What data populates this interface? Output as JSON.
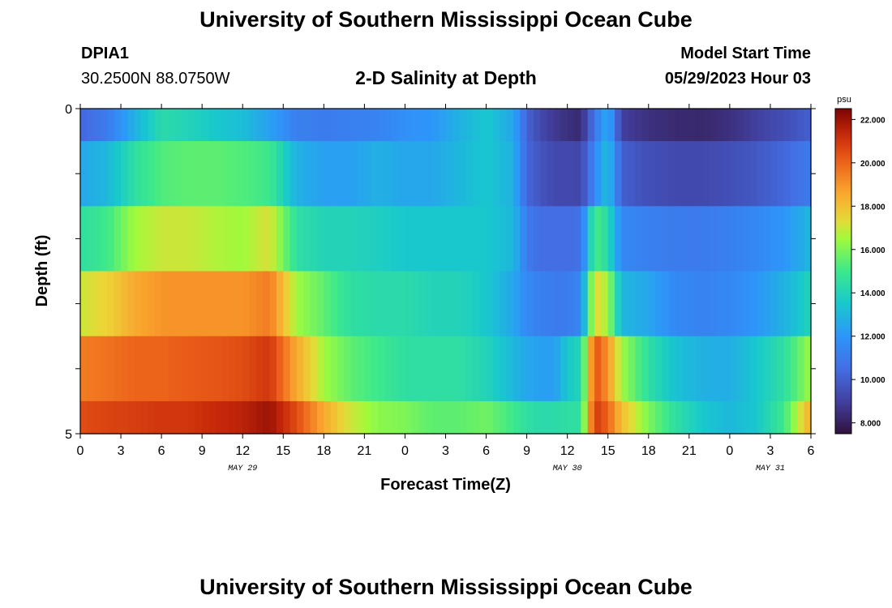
{
  "page": {
    "title_top": "University of Southern Mississippi Ocean Cube",
    "title_bottom": "University of Southern Mississippi Ocean Cube",
    "station_id": "DPIA1",
    "station_coords": "30.2500N  88.0750W",
    "chart_title": "2-D Salinity at Depth",
    "model_start_label": "Model Start Time",
    "model_start_value": "05/29/2023 Hour 03"
  },
  "chart_data": {
    "type": "heatmap",
    "title": "2-D Salinity at Depth",
    "xlabel": "Forecast Time(Z)",
    "ylabel": "Depth (ft)",
    "x_ticks": [
      "0",
      "3",
      "6",
      "9",
      "12",
      "15",
      "18",
      "21",
      "0",
      "3",
      "6",
      "9",
      "12",
      "15",
      "18",
      "21",
      "0",
      "3",
      "6"
    ],
    "x_day_labels": [
      "MAY 29",
      "MAY 30",
      "MAY 31"
    ],
    "x_range_hours": [
      0,
      54
    ],
    "y_ticks": [
      "0",
      "5"
    ],
    "y_range": [
      0,
      5
    ],
    "colorbar": {
      "unit": "psu",
      "range": [
        7.5,
        22.5
      ],
      "ticks": [
        "22.000",
        "20.000",
        "18.000",
        "16.000",
        "14.000",
        "12.000",
        "10.000",
        "8.000"
      ]
    },
    "depth_layers": [
      0.5,
      1.5,
      2.5,
      3.5,
      4.5
    ],
    "series": [
      {
        "name": "layer-1",
        "hours": [
          0,
          2,
          4,
          6,
          8,
          10,
          12,
          14,
          16,
          18,
          20,
          22,
          24,
          26,
          28,
          30,
          32,
          33,
          34,
          35,
          36,
          37,
          38,
          39,
          40,
          42,
          44,
          46,
          48,
          50,
          52,
          54
        ],
        "values": [
          10.3,
          11.0,
          12.8,
          14.3,
          14.0,
          13.5,
          13.2,
          12.3,
          11.2,
          11.0,
          11.2,
          11.3,
          11.8,
          12.0,
          12.8,
          13.5,
          12.5,
          10.2,
          9.3,
          8.8,
          8.5,
          8.3,
          10.8,
          12.8,
          9.0,
          8.5,
          8.3,
          8.2,
          8.5,
          9.0,
          9.5,
          10.0
        ]
      },
      {
        "name": "layer-2",
        "hours": [
          0,
          2,
          4,
          6,
          8,
          10,
          12,
          14,
          16,
          18,
          20,
          22,
          24,
          26,
          28,
          30,
          32,
          33,
          34,
          35,
          36,
          37,
          38,
          39,
          40,
          42,
          44,
          46,
          48,
          50,
          52,
          54
        ],
        "values": [
          12.5,
          13.0,
          14.5,
          15.3,
          15.5,
          15.5,
          15.3,
          15.0,
          12.8,
          12.3,
          12.3,
          12.8,
          12.5,
          12.5,
          13.0,
          13.5,
          12.8,
          10.3,
          9.7,
          9.3,
          9.3,
          9.2,
          11.5,
          13.3,
          10.0,
          9.5,
          9.3,
          9.3,
          9.5,
          9.8,
          10.3,
          11.0
        ]
      },
      {
        "name": "layer-3",
        "hours": [
          0,
          2,
          4,
          6,
          8,
          10,
          12,
          14,
          16,
          18,
          20,
          22,
          24,
          26,
          28,
          30,
          32,
          33,
          34,
          35,
          36,
          37,
          38,
          39,
          40,
          42,
          44,
          46,
          48,
          50,
          52,
          54
        ],
        "values": [
          14.5,
          15.0,
          16.5,
          17.0,
          17.0,
          16.7,
          16.5,
          17.2,
          14.5,
          14.0,
          14.0,
          13.8,
          13.5,
          13.5,
          13.5,
          13.5,
          13.0,
          11.0,
          10.5,
          10.5,
          10.5,
          10.6,
          15.3,
          14.3,
          11.5,
          11.2,
          11.0,
          11.0,
          11.2,
          11.5,
          12.0,
          13.0
        ]
      },
      {
        "name": "layer-4",
        "hours": [
          0,
          2,
          4,
          6,
          8,
          10,
          12,
          14,
          16,
          18,
          20,
          22,
          24,
          26,
          28,
          30,
          32,
          33,
          34,
          35,
          36,
          37,
          38,
          39,
          40,
          42,
          44,
          46,
          48,
          50,
          52,
          54
        ],
        "values": [
          17.0,
          17.5,
          18.5,
          19.0,
          19.0,
          19.0,
          19.0,
          19.5,
          16.5,
          15.5,
          14.5,
          14.3,
          14.3,
          14.0,
          14.0,
          13.5,
          12.5,
          11.5,
          11.2,
          11.0,
          11.0,
          11.5,
          17.5,
          16.5,
          13.0,
          12.5,
          11.5,
          11.3,
          11.5,
          12.0,
          12.8,
          14.0
        ]
      },
      {
        "name": "layer-5",
        "hours": [
          0,
          2,
          4,
          6,
          8,
          10,
          12,
          14,
          16,
          18,
          20,
          22,
          24,
          26,
          28,
          30,
          32,
          33,
          34,
          35,
          36,
          37,
          38,
          39,
          40,
          42,
          44,
          46,
          48,
          50,
          52,
          54
        ],
        "values": [
          19.5,
          19.7,
          20.0,
          20.0,
          20.2,
          20.3,
          20.5,
          21.0,
          18.5,
          16.5,
          15.5,
          15.0,
          14.5,
          14.5,
          14.5,
          14.0,
          13.0,
          12.5,
          12.3,
          12.2,
          13.5,
          14.0,
          20.5,
          19.0,
          16.5,
          14.5,
          13.3,
          12.8,
          12.7,
          13.5,
          14.5,
          16.5
        ]
      },
      {
        "name": "layer-6",
        "hours": [
          0,
          2,
          4,
          6,
          8,
          10,
          12,
          14,
          16,
          18,
          20,
          22,
          24,
          26,
          28,
          30,
          32,
          33,
          34,
          35,
          36,
          37,
          38,
          39,
          40,
          42,
          44,
          46,
          48,
          50,
          52,
          54
        ],
        "values": [
          20.5,
          20.7,
          20.8,
          21.0,
          21.0,
          21.3,
          21.5,
          22.0,
          20.5,
          18.5,
          17.0,
          16.2,
          16.0,
          15.5,
          15.5,
          15.8,
          15.0,
          14.5,
          14.3,
          14.3,
          14.5,
          14.5,
          21.0,
          20.0,
          18.0,
          16.0,
          14.5,
          13.5,
          13.0,
          13.5,
          15.0,
          18.5
        ]
      }
    ]
  }
}
